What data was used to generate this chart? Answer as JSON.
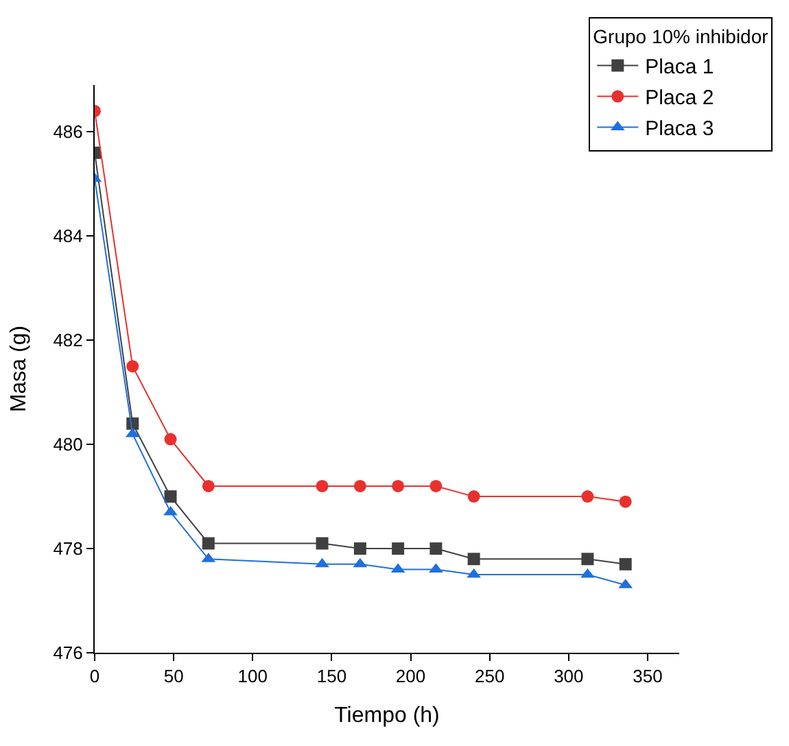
{
  "chart_data": {
    "type": "line",
    "xlabel": "Tiempo (h)",
    "ylabel": "Masa (g)",
    "legend_title": "Grupo 10% inhibidor",
    "legend": "top right",
    "x": [
      0,
      24,
      48,
      72,
      144,
      168,
      192,
      216,
      240,
      312,
      336
    ],
    "xlim": [
      0,
      370
    ],
    "xticks": [
      0,
      50,
      100,
      150,
      200,
      250,
      300,
      350
    ],
    "ylim": [
      476,
      486.9
    ],
    "yticks": [
      476,
      478,
      480,
      482,
      484,
      486
    ],
    "series": [
      {
        "name": "Placa 1",
        "color": "#404040",
        "marker": "square",
        "values": [
          485.6,
          480.4,
          479.0,
          478.1,
          478.1,
          478.0,
          478.0,
          478.0,
          477.8,
          477.8,
          477.7
        ]
      },
      {
        "name": "Placa 2",
        "color": "#e8312e",
        "marker": "circle",
        "values": [
          486.4,
          481.5,
          480.1,
          479.2,
          479.2,
          479.2,
          479.2,
          479.2,
          479.0,
          479.0,
          478.9
        ]
      },
      {
        "name": "Placa 3",
        "color": "#1f6fe0",
        "marker": "triangle",
        "values": [
          485.1,
          480.2,
          478.7,
          477.8,
          477.7,
          477.7,
          477.6,
          477.6,
          477.5,
          477.5,
          477.3
        ]
      }
    ]
  }
}
